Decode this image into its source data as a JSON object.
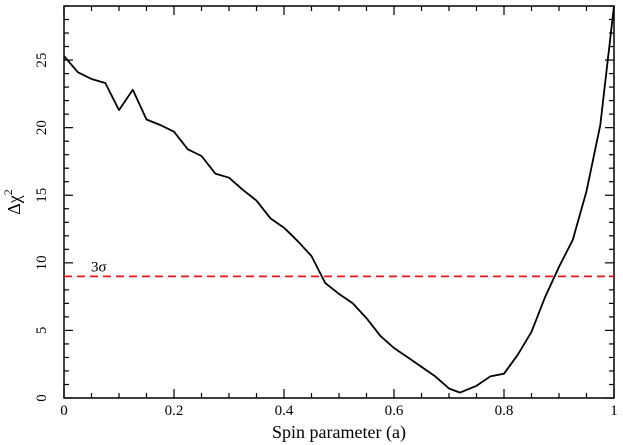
{
  "chart_data": {
    "type": "line",
    "title": "",
    "xlabel": "Spin parameter (a)",
    "ylabel": "Δχ",
    "ylabel_superscript": "2",
    "xlim": [
      0,
      1
    ],
    "ylim": [
      0,
      29
    ],
    "x_ticks": [
      0,
      0.2,
      0.4,
      0.6,
      0.8,
      1
    ],
    "x_tick_labels": [
      "0",
      "0.2",
      "0.4",
      "0.6",
      "0.8",
      "1"
    ],
    "y_ticks": [
      0,
      5,
      10,
      15,
      20,
      25
    ],
    "y_tick_labels": [
      "0",
      "5",
      "10",
      "15",
      "20",
      "25"
    ],
    "grid": false,
    "series": [
      {
        "color": "#000000",
        "x": [
          0,
          0.025,
          0.05,
          0.075,
          0.1,
          0.125,
          0.15,
          0.175,
          0.2,
          0.225,
          0.25,
          0.275,
          0.3,
          0.325,
          0.35,
          0.375,
          0.4,
          0.425,
          0.45,
          0.475,
          0.5,
          0.525,
          0.55,
          0.575,
          0.6,
          0.625,
          0.65,
          0.675,
          0.7,
          0.72,
          0.75,
          0.775,
          0.8,
          0.825,
          0.85,
          0.875,
          0.9,
          0.925,
          0.95,
          0.975,
          1.0
        ],
        "y": [
          25.3,
          24.1,
          23.6,
          23.3,
          21.3,
          22.8,
          20.6,
          20.2,
          19.7,
          18.4,
          17.9,
          16.6,
          16.3,
          15.4,
          14.6,
          13.3,
          12.6,
          11.6,
          10.5,
          8.5,
          7.7,
          7.0,
          5.9,
          4.6,
          3.7,
          3.0,
          2.3,
          1.6,
          0.7,
          0.4,
          0.9,
          1.6,
          1.8,
          3.2,
          4.9,
          7.5,
          9.7,
          11.7,
          15.3,
          20.2,
          29.0
        ]
      }
    ],
    "reference_line": {
      "y": 9,
      "color": "#e8141c",
      "style": "dashed",
      "label": "3σ"
    }
  }
}
